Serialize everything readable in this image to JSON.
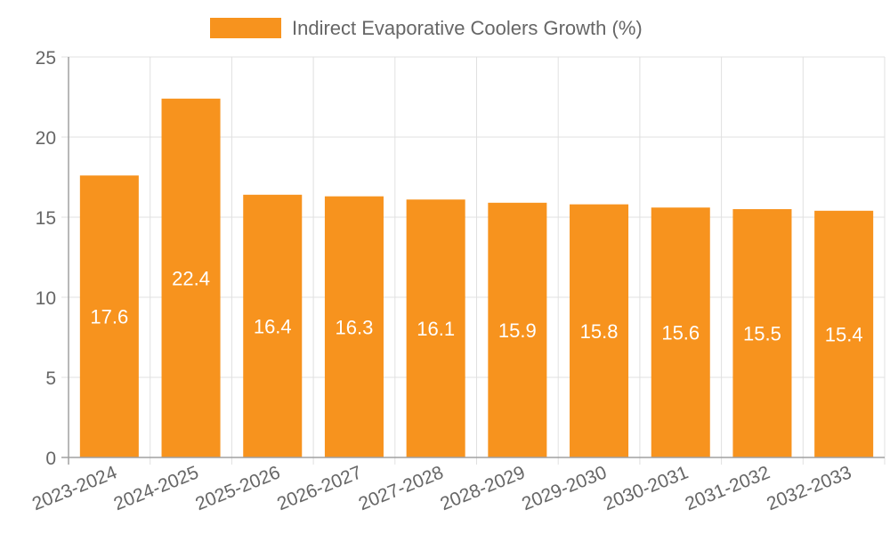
{
  "chart_data": {
    "type": "bar",
    "title": "",
    "legend": [
      {
        "label": "Indirect Evaporative Coolers Growth (%)",
        "color": "#f7931e"
      }
    ],
    "legend_position": "top",
    "categories": [
      "2023-2024",
      "2024-2025",
      "2025-2026",
      "2026-2027",
      "2027-2028",
      "2028-2029",
      "2029-2030",
      "2030-2031",
      "2031-2032",
      "2032-2033"
    ],
    "series": [
      {
        "name": "Indirect Evaporative Coolers Growth (%)",
        "values": [
          17.6,
          22.4,
          16.4,
          16.3,
          16.1,
          15.9,
          15.8,
          15.6,
          15.5,
          15.4
        ],
        "color": "#f7931e"
      }
    ],
    "data_labels": [
      "17.6",
      "22.4",
      "16.4",
      "16.3",
      "16.1",
      "15.9",
      "15.8",
      "15.6",
      "15.5",
      "15.4"
    ],
    "xlabel": "",
    "ylabel": "",
    "ylim": [
      0,
      25
    ],
    "y_ticks": [
      0,
      5,
      10,
      15,
      20,
      25
    ],
    "grid": true
  },
  "colors": {
    "bar": "#f7931e",
    "grid": "#e0e0e0",
    "axis": "#a0a0a0",
    "text": "#666666"
  }
}
